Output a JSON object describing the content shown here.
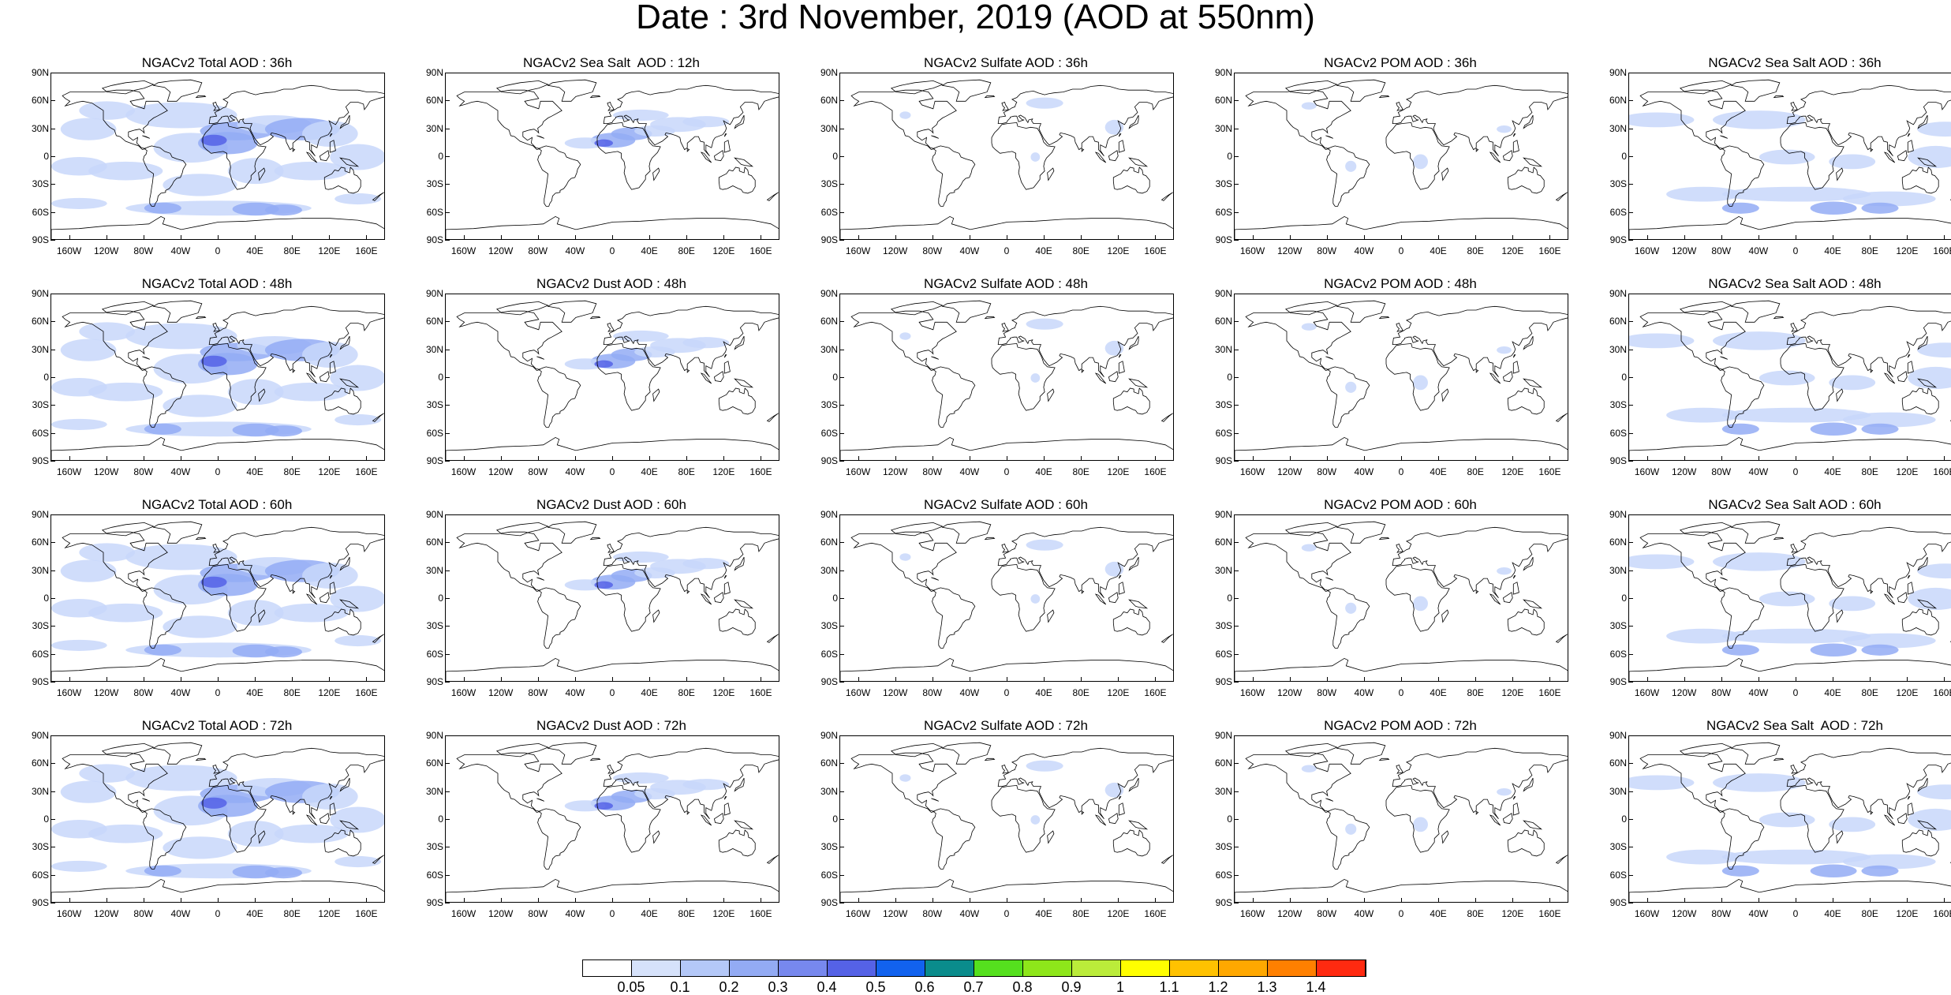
{
  "title": "Date : 3rd November, 2019 (AOD at 550nm)",
  "lat_ticks": [
    "90N",
    "60N",
    "30N",
    "0",
    "30S",
    "60S",
    "90S"
  ],
  "lon_ticks": [
    "160W",
    "120W",
    "80W",
    "40W",
    "0",
    "40E",
    "80E",
    "120E",
    "160E"
  ],
  "panels": [
    [
      "NGACv2 Total AOD : 36h",
      "NGACv2 Sea Salt  AOD : 12h",
      "NGACv2 Sulfate AOD : 36h",
      "NGACv2 POM AOD : 36h",
      "NGACv2 Sea Salt AOD : 36h"
    ],
    [
      "NGACv2 Total AOD : 48h",
      "NGACv2 Dust AOD : 48h",
      "NGACv2 Sulfate AOD : 48h",
      "NGACv2 POM AOD : 48h",
      "NGACv2 Sea Salt AOD : 48h"
    ],
    [
      "NGACv2 Total AOD : 60h",
      "NGACv2 Dust AOD : 60h",
      "NGACv2 Sulfate AOD : 60h",
      "NGACv2 POM AOD : 60h",
      "NGACv2 Sea Salt AOD : 60h"
    ],
    [
      "NGACv2 Total AOD : 72h",
      "NGACv2 Dust AOD : 72h",
      "NGACv2 Sulfate AOD : 72h",
      "NGACv2 POM AOD : 72h",
      "NGACv2 Sea Salt  AOD : 72h"
    ]
  ],
  "colorbar": {
    "labels": [
      "0.05",
      "0.1",
      "0.2",
      "0.3",
      "0.4",
      "0.5",
      "0.6",
      "0.7",
      "0.8",
      "0.9",
      "1",
      "1.1",
      "1.2",
      "1.3",
      "1.4"
    ],
    "colors": [
      "#ffffff",
      "#d6e2fb",
      "#b4c8f8",
      "#93abf4",
      "#7788ee",
      "#5562e6",
      "#1262ee",
      "#0a8c8c",
      "#55e01e",
      "#8ee61a",
      "#bbec3a",
      "#ffff00",
      "#ffc200",
      "#ffa800",
      "#ff8000",
      "#ff2a10"
    ]
  },
  "colors": {
    "aerosol_light": "#c8d7fa",
    "aerosol_mid": "#93abf4",
    "aerosol_dark": "#5562e6",
    "coastline": "#000000"
  }
}
